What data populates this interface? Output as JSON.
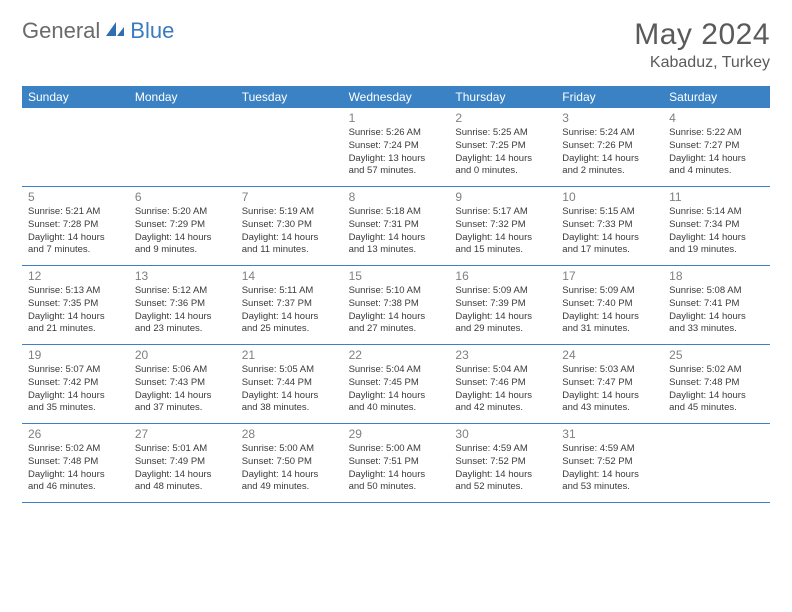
{
  "brand": {
    "part1": "General",
    "part2": "Blue"
  },
  "title": "May 2024",
  "location": "Kabaduz, Turkey",
  "colors": {
    "header_bg": "#3b82c4",
    "header_text": "#ffffff",
    "day_number": "#808080",
    "body_text": "#3a3a3a",
    "title_text": "#5a5a5a",
    "logo_gray": "#6a6a6a",
    "logo_blue": "#3b7bbf",
    "page_bg": "#ffffff"
  },
  "layout": {
    "columns": 7,
    "weekday_fontsize": 12,
    "daynum_fontsize": 12,
    "detail_fontsize": 9.5,
    "title_fontsize": 30,
    "location_fontsize": 16
  },
  "weekdays": [
    "Sunday",
    "Monday",
    "Tuesday",
    "Wednesday",
    "Thursday",
    "Friday",
    "Saturday"
  ],
  "weeks": [
    [
      null,
      null,
      null,
      {
        "n": "1",
        "sr": "5:26 AM",
        "ss": "7:24 PM",
        "dl": "13 hours and 57 minutes."
      },
      {
        "n": "2",
        "sr": "5:25 AM",
        "ss": "7:25 PM",
        "dl": "14 hours and 0 minutes."
      },
      {
        "n": "3",
        "sr": "5:24 AM",
        "ss": "7:26 PM",
        "dl": "14 hours and 2 minutes."
      },
      {
        "n": "4",
        "sr": "5:22 AM",
        "ss": "7:27 PM",
        "dl": "14 hours and 4 minutes."
      }
    ],
    [
      {
        "n": "5",
        "sr": "5:21 AM",
        "ss": "7:28 PM",
        "dl": "14 hours and 7 minutes."
      },
      {
        "n": "6",
        "sr": "5:20 AM",
        "ss": "7:29 PM",
        "dl": "14 hours and 9 minutes."
      },
      {
        "n": "7",
        "sr": "5:19 AM",
        "ss": "7:30 PM",
        "dl": "14 hours and 11 minutes."
      },
      {
        "n": "8",
        "sr": "5:18 AM",
        "ss": "7:31 PM",
        "dl": "14 hours and 13 minutes."
      },
      {
        "n": "9",
        "sr": "5:17 AM",
        "ss": "7:32 PM",
        "dl": "14 hours and 15 minutes."
      },
      {
        "n": "10",
        "sr": "5:15 AM",
        "ss": "7:33 PM",
        "dl": "14 hours and 17 minutes."
      },
      {
        "n": "11",
        "sr": "5:14 AM",
        "ss": "7:34 PM",
        "dl": "14 hours and 19 minutes."
      }
    ],
    [
      {
        "n": "12",
        "sr": "5:13 AM",
        "ss": "7:35 PM",
        "dl": "14 hours and 21 minutes."
      },
      {
        "n": "13",
        "sr": "5:12 AM",
        "ss": "7:36 PM",
        "dl": "14 hours and 23 minutes."
      },
      {
        "n": "14",
        "sr": "5:11 AM",
        "ss": "7:37 PM",
        "dl": "14 hours and 25 minutes."
      },
      {
        "n": "15",
        "sr": "5:10 AM",
        "ss": "7:38 PM",
        "dl": "14 hours and 27 minutes."
      },
      {
        "n": "16",
        "sr": "5:09 AM",
        "ss": "7:39 PM",
        "dl": "14 hours and 29 minutes."
      },
      {
        "n": "17",
        "sr": "5:09 AM",
        "ss": "7:40 PM",
        "dl": "14 hours and 31 minutes."
      },
      {
        "n": "18",
        "sr": "5:08 AM",
        "ss": "7:41 PM",
        "dl": "14 hours and 33 minutes."
      }
    ],
    [
      {
        "n": "19",
        "sr": "5:07 AM",
        "ss": "7:42 PM",
        "dl": "14 hours and 35 minutes."
      },
      {
        "n": "20",
        "sr": "5:06 AM",
        "ss": "7:43 PM",
        "dl": "14 hours and 37 minutes."
      },
      {
        "n": "21",
        "sr": "5:05 AM",
        "ss": "7:44 PM",
        "dl": "14 hours and 38 minutes."
      },
      {
        "n": "22",
        "sr": "5:04 AM",
        "ss": "7:45 PM",
        "dl": "14 hours and 40 minutes."
      },
      {
        "n": "23",
        "sr": "5:04 AM",
        "ss": "7:46 PM",
        "dl": "14 hours and 42 minutes."
      },
      {
        "n": "24",
        "sr": "5:03 AM",
        "ss": "7:47 PM",
        "dl": "14 hours and 43 minutes."
      },
      {
        "n": "25",
        "sr": "5:02 AM",
        "ss": "7:48 PM",
        "dl": "14 hours and 45 minutes."
      }
    ],
    [
      {
        "n": "26",
        "sr": "5:02 AM",
        "ss": "7:48 PM",
        "dl": "14 hours and 46 minutes."
      },
      {
        "n": "27",
        "sr": "5:01 AM",
        "ss": "7:49 PM",
        "dl": "14 hours and 48 minutes."
      },
      {
        "n": "28",
        "sr": "5:00 AM",
        "ss": "7:50 PM",
        "dl": "14 hours and 49 minutes."
      },
      {
        "n": "29",
        "sr": "5:00 AM",
        "ss": "7:51 PM",
        "dl": "14 hours and 50 minutes."
      },
      {
        "n": "30",
        "sr": "4:59 AM",
        "ss": "7:52 PM",
        "dl": "14 hours and 52 minutes."
      },
      {
        "n": "31",
        "sr": "4:59 AM",
        "ss": "7:52 PM",
        "dl": "14 hours and 53 minutes."
      },
      null
    ]
  ],
  "labels": {
    "sunrise": "Sunrise: ",
    "sunset": "Sunset: ",
    "daylight": "Daylight: "
  }
}
